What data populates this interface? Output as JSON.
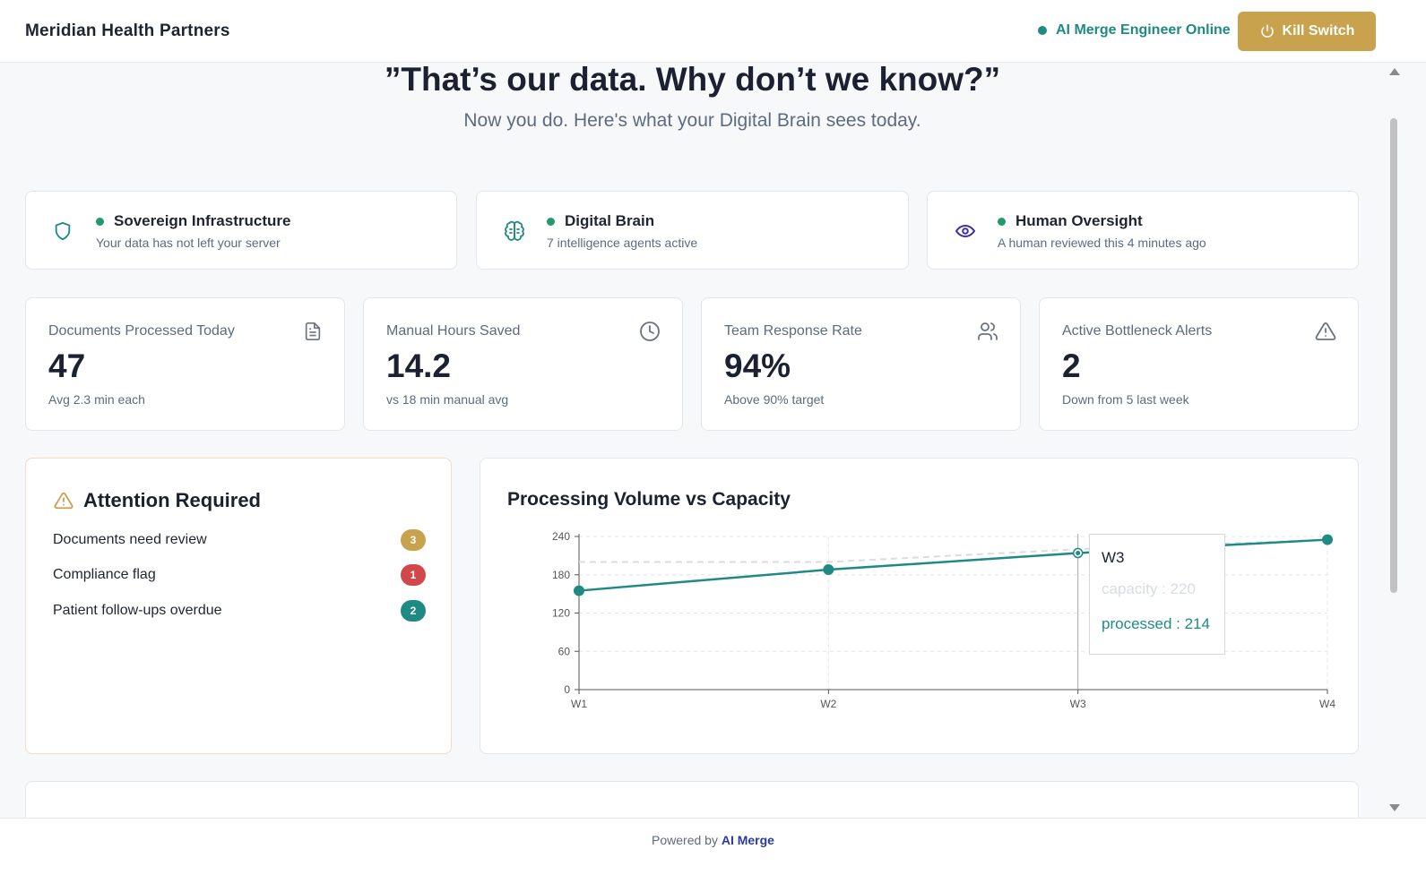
{
  "header": {
    "brand": "Meridian Health Partners",
    "status": "AI Merge Engineer Online",
    "kill_switch": "Kill Switch"
  },
  "hero": {
    "title": "”That’s our data. Why don’t we know?”",
    "subtitle": "Now you do. Here's what your Digital Brain sees today."
  },
  "status_cards": [
    {
      "icon": "shield-icon",
      "title": "Sovereign Infrastructure",
      "subtitle": "Your data has not left your server"
    },
    {
      "icon": "brain-icon",
      "title": "Digital Brain",
      "subtitle": "7 intelligence agents active"
    },
    {
      "icon": "eye-icon",
      "title": "Human Oversight",
      "subtitle": "A human reviewed this 4 minutes ago"
    }
  ],
  "kpis": [
    {
      "label": "Documents Processed Today",
      "value": "47",
      "sub": "Avg 2.3 min each",
      "icon": "document-icon"
    },
    {
      "label": "Manual Hours Saved",
      "value": "14.2",
      "sub": "vs 18 min manual avg",
      "icon": "clock-icon"
    },
    {
      "label": "Team Response Rate",
      "value": "94%",
      "sub": "Above 90% target",
      "icon": "users-icon"
    },
    {
      "label": "Active Bottleneck Alerts",
      "value": "2",
      "sub": "Down from 5 last week",
      "icon": "alert-icon"
    }
  ],
  "attention": {
    "title": "Attention Required",
    "items": [
      {
        "label": "Documents need review",
        "count": "3",
        "color": "#c9a24d"
      },
      {
        "label": "Compliance flag",
        "count": "1",
        "color": "#d0484a"
      },
      {
        "label": "Patient follow-ups overdue",
        "count": "2",
        "color": "#1f8a84"
      }
    ]
  },
  "colors": {
    "accent": "#1f8a84",
    "gold": "#c9a24d",
    "capacity": "#d8dde2"
  },
  "chart_data": {
    "type": "line",
    "title": "Processing Volume vs Capacity",
    "categories": [
      "W1",
      "W2",
      "W3",
      "W4"
    ],
    "series": [
      {
        "name": "capacity",
        "values": [
          200,
          200,
          220,
          235
        ]
      },
      {
        "name": "processed",
        "values": [
          155,
          188,
          214,
          235
        ]
      }
    ],
    "yticks": [
      "0",
      "60",
      "120",
      "180",
      "240"
    ],
    "ylim": [
      0,
      240
    ],
    "grid": true,
    "tooltip": {
      "label": "W3",
      "capacity": "capacity : 220",
      "processed": "processed : 214"
    }
  },
  "footer": {
    "prefix": "Powered by",
    "brand": "AI Merge"
  }
}
